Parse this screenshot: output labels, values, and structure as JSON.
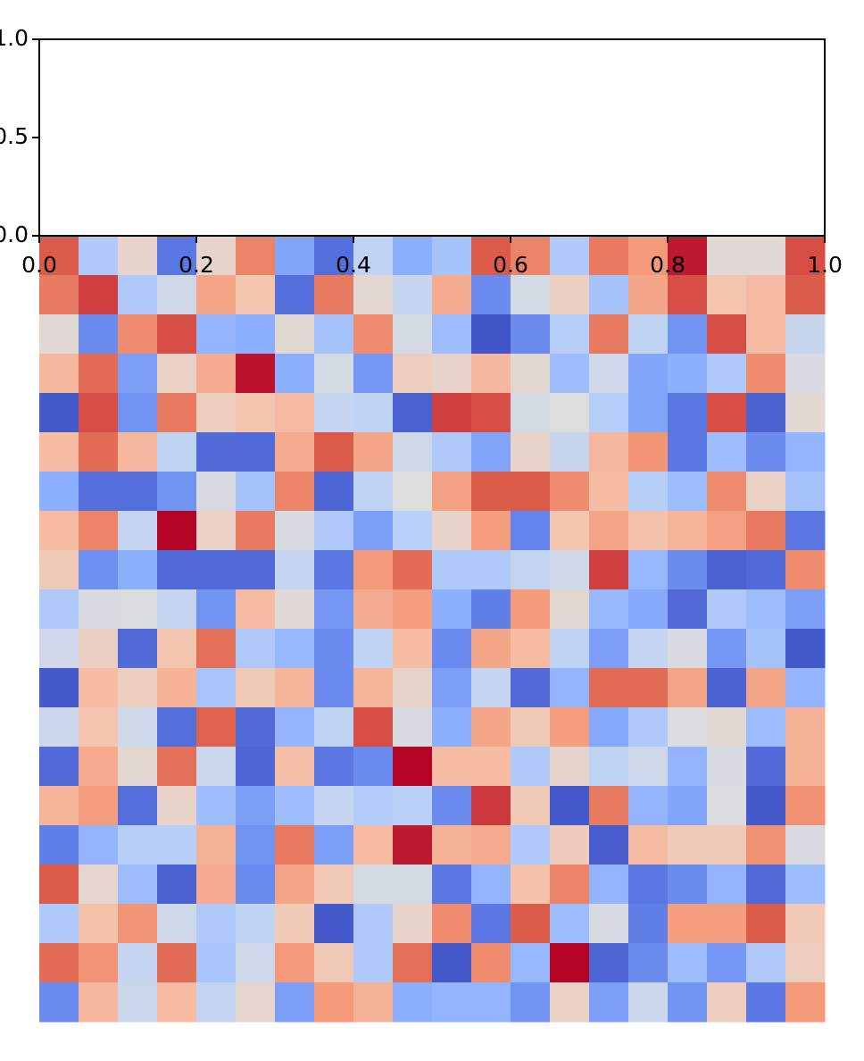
{
  "chart_data": [
    {
      "type": "line",
      "series": [],
      "xlim": [
        0,
        1
      ],
      "ylim": [
        0,
        1
      ],
      "xticks": [
        {
          "value": 0,
          "label": "0.0"
        },
        0.2,
        0.4,
        0.6,
        0.8,
        {
          "value": 1,
          "label": "1.0"
        }
      ],
      "yticks": [
        {
          "value": 0,
          "label": "0.0"
        },
        0.5,
        {
          "value": 1,
          "label": "1.0"
        }
      ]
    },
    {
      "type": "heatmap",
      "colormap": "coolwarm",
      "values": [
        [
          0.88,
          0.35,
          0.55,
          0.1,
          0.55,
          0.8,
          0.22,
          0.08,
          0.4,
          0.25,
          0.32,
          0.88,
          0.8,
          0.35,
          0.82,
          0.75,
          0.97,
          0.52,
          0.52,
          0.9
        ],
        [
          0.82,
          0.92,
          0.35,
          0.45,
          0.72,
          0.62,
          0.08,
          0.82,
          0.53,
          0.42,
          0.7,
          0.15,
          0.47,
          0.57,
          0.32,
          0.72,
          0.9,
          0.62,
          0.65,
          0.88
        ],
        [
          0.52,
          0.15,
          0.78,
          0.9,
          0.27,
          0.25,
          0.53,
          0.32,
          0.78,
          0.47,
          0.3,
          0.02,
          0.15,
          0.37,
          0.82,
          0.4,
          0.17,
          0.9,
          0.65,
          0.43
        ],
        [
          0.66,
          0.85,
          0.2,
          0.56,
          0.7,
          0.98,
          0.25,
          0.47,
          0.18,
          0.58,
          0.55,
          0.66,
          0.53,
          0.3,
          0.45,
          0.22,
          0.25,
          0.35,
          0.78,
          0.48
        ],
        [
          0.03,
          0.9,
          0.17,
          0.82,
          0.58,
          0.62,
          0.65,
          0.42,
          0.4,
          0.05,
          0.92,
          0.9,
          0.47,
          0.5,
          0.37,
          0.22,
          0.1,
          0.9,
          0.05,
          0.53
        ],
        [
          0.65,
          0.85,
          0.66,
          0.4,
          0.07,
          0.07,
          0.7,
          0.88,
          0.72,
          0.45,
          0.35,
          0.22,
          0.55,
          0.43,
          0.66,
          0.76,
          0.1,
          0.3,
          0.15,
          0.27
        ],
        [
          0.25,
          0.08,
          0.08,
          0.17,
          0.48,
          0.32,
          0.8,
          0.06,
          0.4,
          0.5,
          0.73,
          0.88,
          0.88,
          0.78,
          0.65,
          0.37,
          0.3,
          0.78,
          0.56,
          0.32
        ],
        [
          0.65,
          0.8,
          0.42,
          1.0,
          0.56,
          0.82,
          0.48,
          0.35,
          0.2,
          0.38,
          0.55,
          0.74,
          0.13,
          0.62,
          0.72,
          0.63,
          0.67,
          0.73,
          0.82,
          0.1
        ],
        [
          0.6,
          0.16,
          0.25,
          0.07,
          0.07,
          0.07,
          0.42,
          0.1,
          0.75,
          0.85,
          0.35,
          0.35,
          0.42,
          0.45,
          0.92,
          0.28,
          0.15,
          0.05,
          0.07,
          0.78
        ],
        [
          0.35,
          0.48,
          0.49,
          0.42,
          0.17,
          0.65,
          0.52,
          0.18,
          0.7,
          0.74,
          0.25,
          0.12,
          0.75,
          0.53,
          0.28,
          0.23,
          0.07,
          0.35,
          0.3,
          0.2
        ],
        [
          0.45,
          0.57,
          0.07,
          0.62,
          0.84,
          0.35,
          0.28,
          0.15,
          0.4,
          0.65,
          0.15,
          0.72,
          0.65,
          0.4,
          0.2,
          0.42,
          0.48,
          0.18,
          0.32,
          0.03
        ],
        [
          0.03,
          0.65,
          0.58,
          0.68,
          0.33,
          0.6,
          0.67,
          0.15,
          0.67,
          0.55,
          0.2,
          0.42,
          0.07,
          0.27,
          0.85,
          0.85,
          0.72,
          0.05,
          0.72,
          0.27
        ],
        [
          0.44,
          0.62,
          0.45,
          0.08,
          0.87,
          0.07,
          0.27,
          0.4,
          0.9,
          0.48,
          0.25,
          0.72,
          0.6,
          0.74,
          0.23,
          0.35,
          0.49,
          0.53,
          0.3,
          0.68
        ],
        [
          0.07,
          0.7,
          0.53,
          0.84,
          0.44,
          0.06,
          0.64,
          0.1,
          0.15,
          1.0,
          0.65,
          0.65,
          0.35,
          0.55,
          0.4,
          0.45,
          0.27,
          0.48,
          0.07,
          0.68
        ],
        [
          0.67,
          0.74,
          0.08,
          0.55,
          0.3,
          0.2,
          0.3,
          0.42,
          0.36,
          0.38,
          0.15,
          0.93,
          0.6,
          0.03,
          0.82,
          0.27,
          0.22,
          0.49,
          0.03,
          0.77
        ],
        [
          0.12,
          0.27,
          0.37,
          0.37,
          0.68,
          0.17,
          0.82,
          0.2,
          0.65,
          0.97,
          0.68,
          0.7,
          0.35,
          0.59,
          0.04,
          0.65,
          0.6,
          0.6,
          0.77,
          0.48
        ],
        [
          0.88,
          0.54,
          0.3,
          0.05,
          0.7,
          0.15,
          0.72,
          0.6,
          0.47,
          0.47,
          0.1,
          0.27,
          0.63,
          0.8,
          0.27,
          0.1,
          0.15,
          0.27,
          0.07,
          0.3
        ],
        [
          0.35,
          0.63,
          0.76,
          0.45,
          0.35,
          0.4,
          0.6,
          0.03,
          0.35,
          0.55,
          0.78,
          0.1,
          0.88,
          0.3,
          0.48,
          0.12,
          0.74,
          0.74,
          0.88,
          0.6
        ],
        [
          0.85,
          0.76,
          0.42,
          0.85,
          0.33,
          0.45,
          0.75,
          0.6,
          0.35,
          0.84,
          0.03,
          0.78,
          0.28,
          1.0,
          0.06,
          0.15,
          0.3,
          0.18,
          0.35,
          0.58
        ],
        [
          0.15,
          0.66,
          0.44,
          0.65,
          0.41,
          0.54,
          0.2,
          0.75,
          0.68,
          0.25,
          0.27,
          0.27,
          0.17,
          0.56,
          0.2,
          0.44,
          0.17,
          0.58,
          0.1,
          0.75
        ]
      ]
    }
  ]
}
